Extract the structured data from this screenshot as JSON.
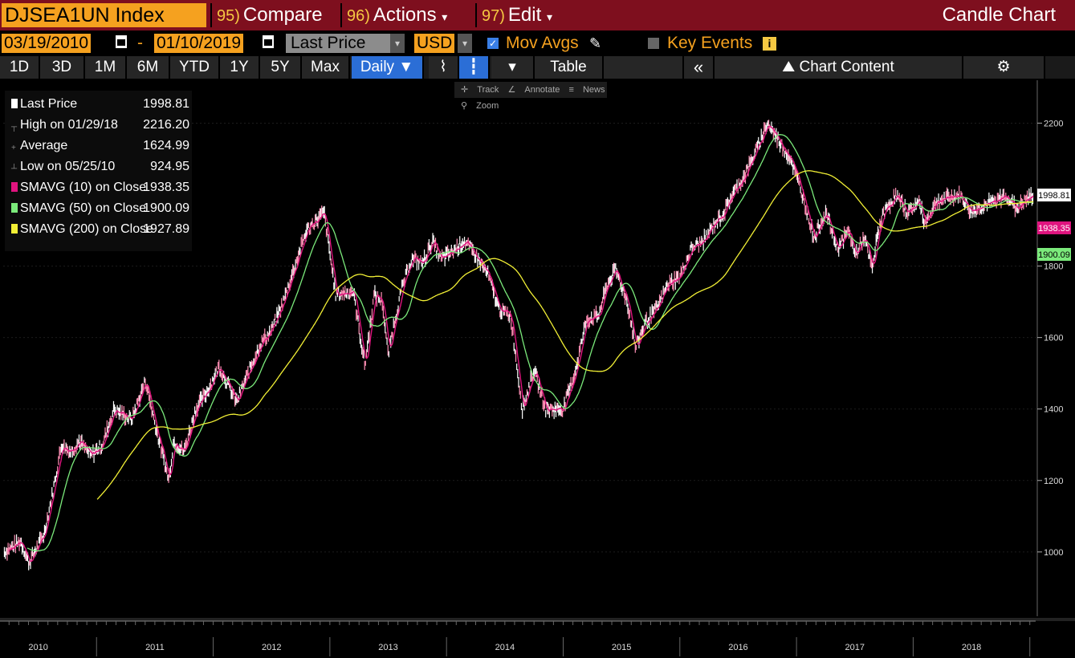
{
  "header": {
    "ticker": "DJSEA1UN Index",
    "compare_num": "95)",
    "compare_label": "Compare",
    "actions_num": "96)",
    "actions_label": "Actions",
    "edit_num": "97)",
    "edit_label": "Edit",
    "chart_type": "Candle Chart",
    "dropdown_glyph": "▾"
  },
  "controls": {
    "start_date": "03/19/2010",
    "date_sep": "-",
    "end_date": "01/10/2019",
    "price_field": "Last Price",
    "currency": "USD",
    "mov_avgs_label": "Mov Avgs",
    "mov_avgs_checked": true,
    "key_events_label": "Key Events",
    "key_events_checked": false,
    "info_glyph": "i"
  },
  "range_tabs": [
    {
      "label": "1D"
    },
    {
      "label": "3D"
    },
    {
      "label": "1M"
    },
    {
      "label": "6M"
    },
    {
      "label": "YTD"
    },
    {
      "label": "1Y"
    },
    {
      "label": "5Y"
    },
    {
      "label": "Max"
    }
  ],
  "frequency": "Daily ▼",
  "table_label": "Table",
  "collapse_glyph": "«",
  "chart_content_label": "Chart Content",
  "mini_tools": {
    "track": "Track",
    "annotate": "Annotate",
    "news": "News",
    "zoom": "Zoom"
  },
  "legend": [
    {
      "label": "Last Price",
      "value": "1998.81",
      "color": "#ffffff"
    },
    {
      "label": "High on 01/29/18",
      "value": "2216.20",
      "color": "#888888"
    },
    {
      "label": "Average",
      "value": "1624.99",
      "color": "#888888"
    },
    {
      "label": "Low on 05/25/10",
      "value": "924.95",
      "color": "#888888"
    },
    {
      "label": "SMAVG (10)  on Close",
      "value": "1938.35",
      "color": "#e0147f"
    },
    {
      "label": "SMAVG (50)  on Close",
      "value": "1900.09",
      "color": "#7bea7b"
    },
    {
      "label": "SMAVG (200)  on Close",
      "value": "1927.89",
      "color": "#f1ef35"
    }
  ],
  "colors": {
    "header_bg": "#7e0f1e",
    "accent": "#f5a11f",
    "sma10": "#e0147f",
    "sma50": "#7bea7b",
    "sma200": "#f1ef35",
    "price": "#ffffff"
  },
  "chart_data": {
    "type": "line",
    "title": "",
    "xlabel": "",
    "ylabel": "",
    "x_ticks": [
      "2010",
      "2011",
      "2012",
      "2013",
      "2014",
      "2015",
      "2016",
      "2017",
      "2018"
    ],
    "y_ticks": [
      1000,
      1200,
      1400,
      1600,
      1800,
      2200
    ],
    "ylim": [
      820,
      2320
    ],
    "xlim": [
      2010.2,
      2019.05
    ],
    "grid": true,
    "legend_position": "top-left",
    "last_value_labels": [
      {
        "series": "Last Price",
        "value": "1998.81"
      },
      {
        "series": "SMAVG (10)",
        "value": "1938.35"
      },
      {
        "series": "SMAVG (50)",
        "value": "1900.09"
      }
    ],
    "series": [
      {
        "name": "Last Price",
        "x": [
          2010.21,
          2010.35,
          2010.42,
          2010.55,
          2010.62,
          2010.7,
          2010.78,
          2010.85,
          2010.95,
          2011.05,
          2011.15,
          2011.3,
          2011.42,
          2011.5,
          2011.62,
          2011.66,
          2011.75,
          2011.85,
          2011.95,
          2012.05,
          2012.2,
          2012.3,
          2012.4,
          2012.5,
          2012.6,
          2012.7,
          2012.8,
          2012.95,
          2013.05,
          2013.2,
          2013.3,
          2013.38,
          2013.45,
          2013.5,
          2013.55,
          2013.62,
          2013.7,
          2013.8,
          2013.88,
          2013.95,
          2014.05,
          2014.15,
          2014.25,
          2014.35,
          2014.45,
          2014.55,
          2014.65,
          2014.75,
          2014.85,
          2015.0,
          2015.1,
          2015.2,
          2015.3,
          2015.38,
          2015.45,
          2015.55,
          2015.62,
          2015.7,
          2015.8,
          2015.9,
          2016.0,
          2016.1,
          2016.2,
          2016.3,
          2016.38,
          2016.45,
          2016.55,
          2016.65,
          2016.75,
          2016.85,
          2016.95,
          2017.05,
          2017.15,
          2017.25,
          2017.35,
          2017.45,
          2017.5,
          2017.58,
          2017.65,
          2017.7,
          2017.75,
          2017.85,
          2017.95,
          2018.05,
          2018.1,
          2018.2,
          2018.3,
          2018.4,
          2018.5,
          2018.6,
          2018.7,
          2018.8,
          2018.88,
          2018.95,
          2019.03
        ],
        "y": [
          1000,
          1030,
          970,
          1050,
          1160,
          1300,
          1280,
          1310,
          1270,
          1300,
          1400,
          1370,
          1480,
          1360,
          1200,
          1310,
          1280,
          1400,
          1450,
          1520,
          1420,
          1500,
          1580,
          1620,
          1700,
          1800,
          1900,
          1950,
          1720,
          1730,
          1520,
          1720,
          1700,
          1550,
          1640,
          1740,
          1820,
          1810,
          1870,
          1820,
          1840,
          1870,
          1830,
          1780,
          1680,
          1660,
          1400,
          1510,
          1400,
          1400,
          1500,
          1650,
          1660,
          1750,
          1790,
          1700,
          1570,
          1640,
          1680,
          1750,
          1770,
          1850,
          1870,
          1920,
          1950,
          2000,
          2050,
          2120,
          2200,
          2150,
          2100,
          2000,
          1880,
          1950,
          1850,
          1900,
          1830,
          1880,
          1790,
          1900,
          1950,
          1998.81,
          1950,
          1980,
          1920,
          1980,
          1990,
          1998.81,
          1950,
          1970,
          1980,
          1998.81,
          1960,
          1980,
          1998.81
        ]
      },
      {
        "name": "SMAVG (10)",
        "values_ref": "close smoothing",
        "last": 1938.35
      },
      {
        "name": "SMAVG (50)",
        "last": 1900.09
      },
      {
        "name": "SMAVG (200)",
        "last": 1927.89
      }
    ]
  }
}
